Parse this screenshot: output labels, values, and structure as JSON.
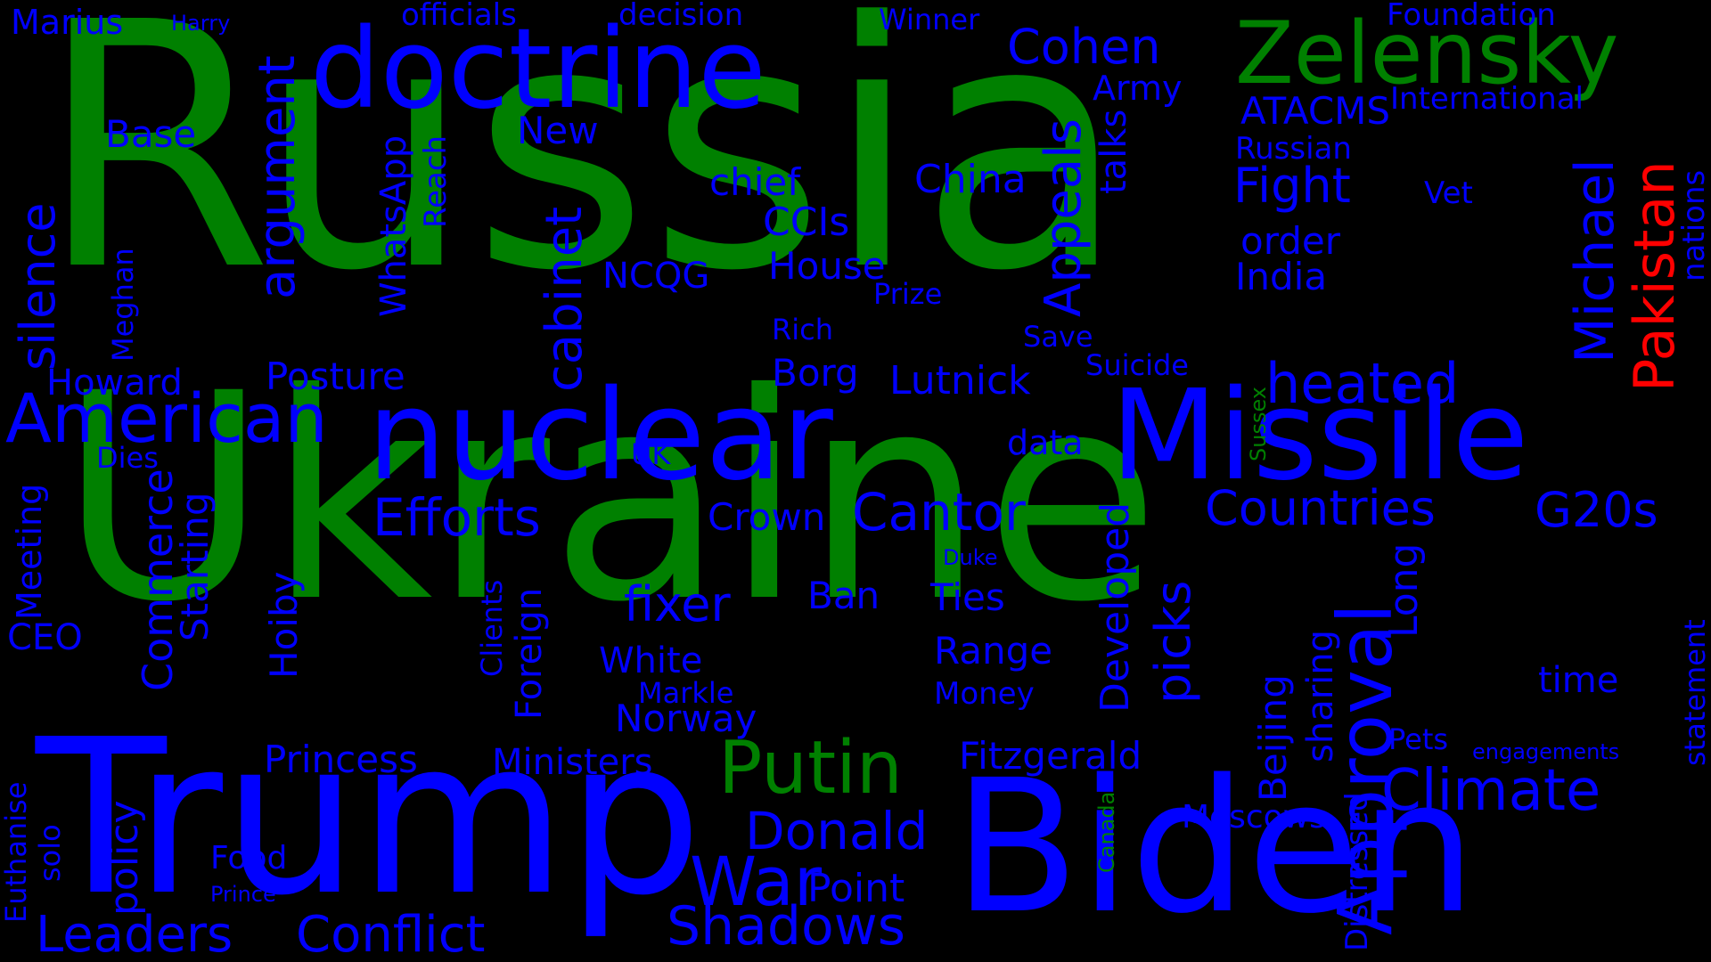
{
  "background": "#000000",
  "colors": {
    "green": "#008000",
    "blue": "#0000ff",
    "red": "#ff0000"
  },
  "words": [
    {
      "text": "Russia",
      "color": "green"
    },
    {
      "text": "Ukraine",
      "color": "green"
    },
    {
      "text": "Trump",
      "color": "blue"
    },
    {
      "text": "Biden",
      "color": "blue"
    },
    {
      "text": "nuclear",
      "color": "blue"
    },
    {
      "text": "Missile",
      "color": "blue"
    },
    {
      "text": "doctrine",
      "color": "blue"
    },
    {
      "text": "Zelensky",
      "color": "green"
    },
    {
      "text": "Putin",
      "color": "green"
    },
    {
      "text": "American",
      "color": "blue"
    },
    {
      "text": "Approval",
      "color": "blue"
    },
    {
      "text": "Pakistan",
      "color": "red"
    },
    {
      "text": "Michael",
      "color": "blue"
    },
    {
      "text": "heated",
      "color": "blue"
    },
    {
      "text": "Efforts",
      "color": "blue"
    },
    {
      "text": "Cantor",
      "color": "blue"
    },
    {
      "text": "Countries",
      "color": "blue"
    },
    {
      "text": "G20s",
      "color": "blue"
    },
    {
      "text": "Climate",
      "color": "blue"
    },
    {
      "text": "Donald",
      "color": "blue"
    },
    {
      "text": "War",
      "color": "blue"
    },
    {
      "text": "Shadows",
      "color": "blue"
    },
    {
      "text": "Conflict",
      "color": "blue"
    },
    {
      "text": "Leaders",
      "color": "blue"
    },
    {
      "text": "Cohen",
      "color": "blue"
    },
    {
      "text": "Fight",
      "color": "blue"
    },
    {
      "text": "fixer",
      "color": "blue"
    },
    {
      "text": "argument",
      "color": "blue"
    },
    {
      "text": "silence",
      "color": "blue"
    },
    {
      "text": "cabinet",
      "color": "blue"
    },
    {
      "text": "Appeals",
      "color": "blue"
    },
    {
      "text": "picks",
      "color": "blue"
    },
    {
      "text": "Marius",
      "color": "blue"
    },
    {
      "text": "Harry",
      "color": "blue"
    },
    {
      "text": "officials",
      "color": "blue"
    },
    {
      "text": "decision",
      "color": "blue"
    },
    {
      "text": "Winner",
      "color": "blue"
    },
    {
      "text": "Foundation",
      "color": "blue"
    },
    {
      "text": "Army",
      "color": "blue"
    },
    {
      "text": "International",
      "color": "blue"
    },
    {
      "text": "ATACMS",
      "color": "blue"
    },
    {
      "text": "Russian",
      "color": "blue"
    },
    {
      "text": "Base",
      "color": "blue"
    },
    {
      "text": "New",
      "color": "blue"
    },
    {
      "text": "chief",
      "color": "blue"
    },
    {
      "text": "China",
      "color": "blue"
    },
    {
      "text": "CCIs",
      "color": "blue"
    },
    {
      "text": "Vet",
      "color": "blue"
    },
    {
      "text": "order",
      "color": "blue"
    },
    {
      "text": "India",
      "color": "blue"
    },
    {
      "text": "nations",
      "color": "blue"
    },
    {
      "text": "NCQG",
      "color": "blue"
    },
    {
      "text": "House",
      "color": "blue"
    },
    {
      "text": "Prize",
      "color": "blue"
    },
    {
      "text": "Rich",
      "color": "blue"
    },
    {
      "text": "Save",
      "color": "blue"
    },
    {
      "text": "Suicide",
      "color": "blue"
    },
    {
      "text": "Borg",
      "color": "blue"
    },
    {
      "text": "Lutnick",
      "color": "blue"
    },
    {
      "text": "Howard",
      "color": "blue"
    },
    {
      "text": "Posture",
      "color": "blue"
    },
    {
      "text": "data",
      "color": "blue"
    },
    {
      "text": "UK",
      "color": "blue"
    },
    {
      "text": "Dies",
      "color": "blue"
    },
    {
      "text": "Crown",
      "color": "blue"
    },
    {
      "text": "Duke",
      "color": "blue"
    },
    {
      "text": "Ban",
      "color": "blue"
    },
    {
      "text": "Ties",
      "color": "blue"
    },
    {
      "text": "White",
      "color": "blue"
    },
    {
      "text": "Range",
      "color": "blue"
    },
    {
      "text": "Markle",
      "color": "blue"
    },
    {
      "text": "Money",
      "color": "blue"
    },
    {
      "text": "Norway",
      "color": "blue"
    },
    {
      "text": "time",
      "color": "blue"
    },
    {
      "text": "Princess",
      "color": "blue"
    },
    {
      "text": "Ministers",
      "color": "blue"
    },
    {
      "text": "Fitzgerald",
      "color": "blue"
    },
    {
      "text": "Pets",
      "color": "blue"
    },
    {
      "text": "engagements",
      "color": "blue"
    },
    {
      "text": "Moscows",
      "color": "blue"
    },
    {
      "text": "Food",
      "color": "blue"
    },
    {
      "text": "Prince",
      "color": "blue"
    },
    {
      "text": "Point",
      "color": "blue"
    },
    {
      "text": "CEO",
      "color": "blue"
    },
    {
      "text": "WhatsApp",
      "color": "blue"
    },
    {
      "text": "Reach",
      "color": "blue"
    },
    {
      "text": "talks",
      "color": "blue"
    },
    {
      "text": "Meghan",
      "color": "blue"
    },
    {
      "text": "Meeting",
      "color": "blue"
    },
    {
      "text": "Commerce",
      "color": "blue"
    },
    {
      "text": "Starting",
      "color": "blue"
    },
    {
      "text": "Hoiby",
      "color": "blue"
    },
    {
      "text": "Clients",
      "color": "blue"
    },
    {
      "text": "Foreign",
      "color": "blue"
    },
    {
      "text": "Developed",
      "color": "blue"
    },
    {
      "text": "Beijing",
      "color": "blue"
    },
    {
      "text": "sharing",
      "color": "blue"
    },
    {
      "text": "Long",
      "color": "blue"
    },
    {
      "text": "statement",
      "color": "blue"
    },
    {
      "text": "Sussex",
      "color": "green"
    },
    {
      "text": "Canada",
      "color": "green"
    },
    {
      "text": "Distressed",
      "color": "blue"
    },
    {
      "text": "Euthanise",
      "color": "blue"
    },
    {
      "text": "solo",
      "color": "blue"
    },
    {
      "text": "policy",
      "color": "blue"
    }
  ]
}
